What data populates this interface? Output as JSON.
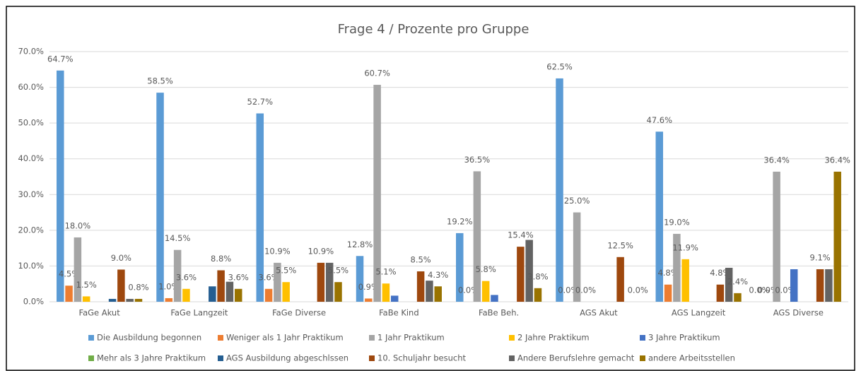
{
  "chart_data": {
    "type": "bar",
    "title": "Frage 4 / Prozente pro Gruppe",
    "categories": [
      "FaGe Akut",
      "FaGe Langzeit",
      "FaGe Diverse",
      "FaBe Kind",
      "FaBe Beh.",
      "AGS Akut",
      "AGS Langzeit",
      "AGS Diverse"
    ],
    "ylim": [
      0,
      70
    ],
    "yticks": [
      {
        "value": 0,
        "label": "0.0%"
      },
      {
        "value": 10,
        "label": "10.0%"
      },
      {
        "value": 20,
        "label": "20.0%"
      },
      {
        "value": 30,
        "label": "30.0%"
      },
      {
        "value": 40,
        "label": "40.0%"
      },
      {
        "value": 50,
        "label": "50.0%"
      },
      {
        "value": 60,
        "label": "60.0%"
      },
      {
        "value": 70,
        "label": "70.0%"
      }
    ],
    "grid": true,
    "legend": "bottom",
    "series": [
      {
        "name": "Die Ausbildung begonnen",
        "color": "#5b9bd5",
        "values": [
          64.7,
          58.5,
          52.7,
          12.8,
          19.2,
          62.5,
          47.6,
          0.0
        ],
        "value_labels": [
          "64.7%",
          "58.5%",
          "52.7%",
          "12.8%",
          "19.2%",
          "62.5%",
          "47.6%",
          "0.0%"
        ]
      },
      {
        "name": "Weniger als 1 Jahr Praktikum",
        "color": "#ed7d31",
        "values": [
          4.5,
          1.0,
          3.6,
          0.9,
          0.0,
          0.0,
          4.8,
          0.0
        ],
        "value_labels": [
          "4.5%",
          "1.0%",
          "3.6%",
          "0.9%",
          "0.0%",
          "0.0%",
          "4.8%",
          "0.0%"
        ]
      },
      {
        "name": "1 Jahr Praktikum",
        "color": "#a5a5a5",
        "values": [
          18.0,
          14.5,
          10.9,
          60.7,
          36.5,
          25.0,
          19.0,
          36.4
        ],
        "value_labels": [
          "18.0%",
          "14.5%",
          "10.9%",
          "60.7%",
          "36.5%",
          "25.0%",
          "19.0%",
          "36.4%"
        ]
      },
      {
        "name": "2 Jahre Praktikum",
        "color": "#ffc000",
        "values": [
          1.5,
          3.6,
          5.5,
          5.1,
          5.8,
          0.0,
          11.9,
          0.0
        ],
        "value_labels": [
          "1.5%",
          "3.6%",
          "5.5%",
          "5.1%",
          "5.8%",
          "0.0%",
          "11.9%",
          "0.0%"
        ]
      },
      {
        "name": "3 Jahre Praktikum",
        "color": "#4472c4",
        "values": [
          0,
          0,
          0,
          1.7,
          1.9,
          0,
          0,
          9.1
        ],
        "value_labels": [
          null,
          null,
          null,
          null,
          null,
          null,
          null,
          null
        ]
      },
      {
        "name": "Mehr als 3 Jahre Praktikum",
        "color": "#70ad47",
        "values": [
          0,
          0,
          0,
          0,
          0,
          0,
          0,
          0
        ],
        "value_labels": [
          null,
          null,
          null,
          null,
          null,
          null,
          null,
          null
        ]
      },
      {
        "name": "AGS Ausbildung abgeschlssen",
        "color": "#255e91",
        "values": [
          0.8,
          4.3,
          0,
          0,
          0,
          0,
          0,
          0
        ],
        "value_labels": [
          null,
          null,
          null,
          null,
          null,
          null,
          null,
          null
        ]
      },
      {
        "name": "10. Schuljahr besucht",
        "color": "#9e480e",
        "values": [
          9.0,
          8.8,
          10.9,
          8.5,
          15.4,
          12.5,
          4.8,
          9.1
        ],
        "value_labels": [
          "9.0%",
          "8.8%",
          "10.9%",
          "8.5%",
          "15.4%",
          "12.5%",
          "4.8%",
          "9.1%"
        ]
      },
      {
        "name": "Andere Berufslehre gemacht",
        "color": "#636363",
        "values": [
          0.8,
          5.6,
          10.9,
          5.9,
          17.3,
          0,
          9.5,
          9.1
        ],
        "value_labels": [
          null,
          null,
          null,
          null,
          null,
          null,
          null,
          null
        ]
      },
      {
        "name": "andere Arbeitsstellen",
        "color": "#997300",
        "values": [
          0.8,
          3.6,
          5.5,
          4.3,
          3.8,
          0.0,
          2.4,
          36.4
        ],
        "value_labels": [
          "0.8%",
          "3.6%",
          "5.5%",
          "4.3%",
          "3.8%",
          "0.0%",
          "2.4%",
          "36.4%"
        ]
      }
    ]
  }
}
